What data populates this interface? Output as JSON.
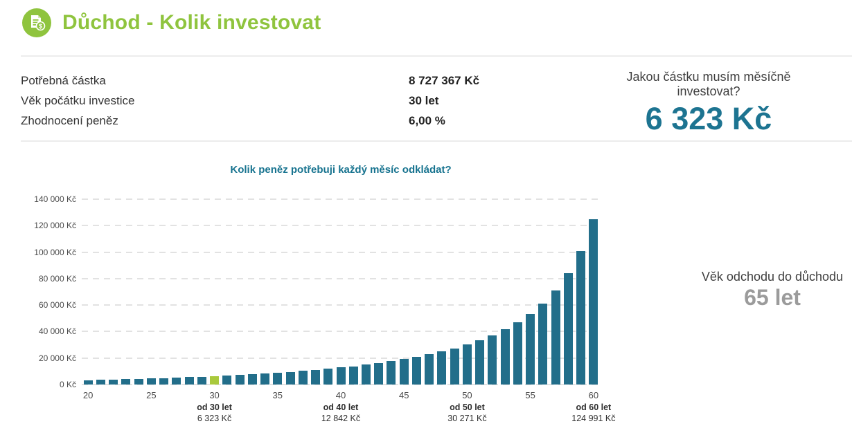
{
  "header": {
    "title": "Důchod - Kolik investovat",
    "icon": "invoice-dollar-icon"
  },
  "summary": {
    "params": [
      {
        "label": "Potřebná částka",
        "value": "8 727 367 Kč"
      },
      {
        "label": "Věk počátku investice",
        "value": "30 let"
      },
      {
        "label": "Zhodnocení peněz",
        "value": "6,00 %"
      }
    ],
    "question": {
      "label": "Jakou částku musím měsíčně investovat?",
      "value": "6 323 Kč"
    }
  },
  "retirement": {
    "label": "Věk odchodu do důchodu",
    "value": "65 let"
  },
  "chart_data": {
    "type": "bar",
    "title": "Kolik peněz potřebuji každý měsíc odkládat?",
    "xlabel": "",
    "ylabel": "",
    "x": [
      20,
      21,
      22,
      23,
      24,
      25,
      26,
      27,
      28,
      29,
      30,
      31,
      32,
      33,
      34,
      35,
      36,
      37,
      38,
      39,
      40,
      41,
      42,
      43,
      44,
      45,
      46,
      47,
      48,
      49,
      50,
      51,
      52,
      53,
      54,
      55,
      56,
      57,
      58,
      59,
      60
    ],
    "values": [
      3312,
      3527,
      3758,
      4004,
      4269,
      4553,
      4857,
      5184,
      5536,
      5915,
      6323,
      6763,
      7238,
      7752,
      8309,
      8912,
      9568,
      10281,
      11060,
      11910,
      12842,
      13865,
      14992,
      16237,
      17618,
      19154,
      20870,
      22798,
      24974,
      27445,
      30271,
      33528,
      37315,
      41766,
      47061,
      53455,
      61315,
      71189,
      83941,
      101012,
      124991
    ],
    "highlight_x": 30,
    "x_tick_interval": 5,
    "ylim": [
      0,
      140000
    ],
    "y_tick_step": 20000,
    "y_tick_suffix": " Kč",
    "grid": "horizontal-dashed",
    "legend": "none",
    "annotations": [
      {
        "x": 30,
        "line1": "od 30 let",
        "line2": "6 323 Kč"
      },
      {
        "x": 40,
        "line1": "od 40 let",
        "line2": "12 842 Kč"
      },
      {
        "x": 50,
        "line1": "od 50 let",
        "line2": "30 271 Kč"
      },
      {
        "x": 60,
        "line1": "od 60 let",
        "line2": "124 991 Kč"
      }
    ]
  },
  "colors": {
    "brand_green": "#8fc43e",
    "bar_teal": "#226e8a",
    "bar_highlight_green": "#a9c93c",
    "accent_teal_text": "#1d7491",
    "chart_title_teal": "#17738f",
    "muted_gray": "#9b9b9b",
    "gridline_gray": "#e2e2e2"
  }
}
